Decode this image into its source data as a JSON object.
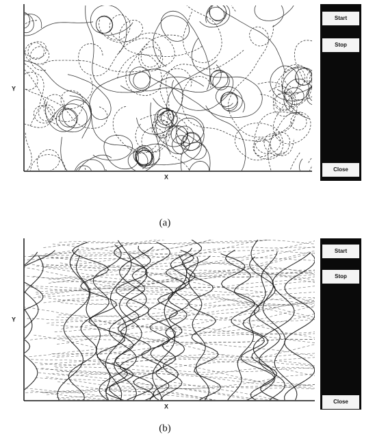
{
  "panels": [
    {
      "label": "(a)",
      "y_axis": "Y",
      "x_axis": "X",
      "buttons": [
        "Start",
        "Stop",
        "Close"
      ]
    },
    {
      "label": "(b)",
      "y_axis": "Y",
      "x_axis": "X",
      "buttons": [
        "Start",
        "Stop",
        "Close"
      ]
    }
  ]
}
